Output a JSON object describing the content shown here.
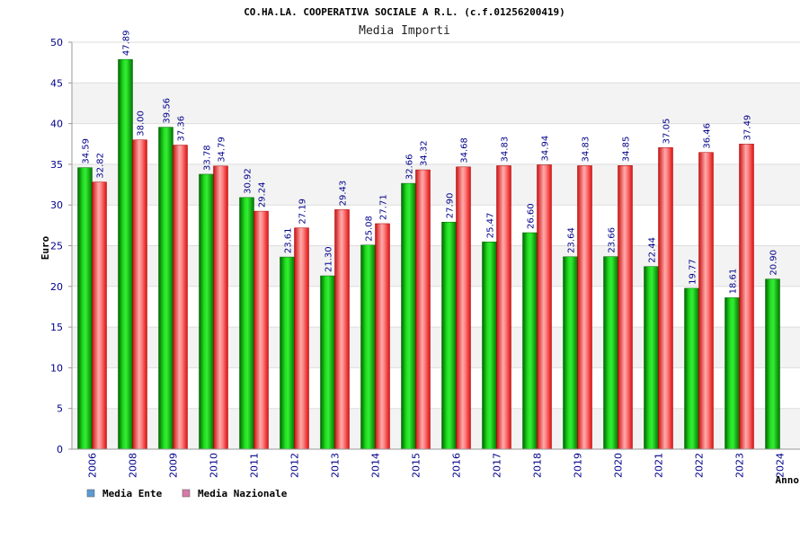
{
  "chart_data": {
    "type": "bar",
    "title": "CO.HA.LA. COOPERATIVA SOCIALE A R.L. (c.f.01256200419)",
    "subtitle": "Media Importi",
    "xlabel": "Anno",
    "ylabel": "Euro",
    "ylim": [
      0,
      50
    ],
    "yticks": [
      0,
      5,
      10,
      15,
      20,
      25,
      30,
      35,
      40,
      45,
      50
    ],
    "grid": true,
    "legend_position": "bottom-left",
    "categories": [
      "2006",
      "2008",
      "2009",
      "2010",
      "2011",
      "2012",
      "2013",
      "2014",
      "2015",
      "2016",
      "2017",
      "2018",
      "2019",
      "2020",
      "2021",
      "2022",
      "2023",
      "2024"
    ],
    "series": [
      {
        "name": "Media Ente",
        "color": "#00aa00",
        "legend_color": "#5b9bd5",
        "values": [
          34.59,
          47.89,
          39.56,
          33.78,
          30.92,
          23.61,
          21.3,
          25.08,
          32.66,
          27.9,
          25.47,
          26.6,
          23.64,
          23.66,
          22.44,
          19.77,
          18.61,
          20.9
        ],
        "labels": [
          "34.59",
          "47.89",
          "39.56",
          "33.78",
          "30.92",
          "23.61",
          "21.30",
          "25.08",
          "32.66",
          "27.90",
          "25.47",
          "26.60",
          "23.64",
          "23.66",
          "22.44",
          "19.77",
          "18.61",
          "20.90"
        ]
      },
      {
        "name": "Media Nazionale",
        "color": "#ee2222",
        "legend_color": "#d77ba8",
        "values": [
          32.82,
          38.0,
          37.36,
          34.79,
          29.24,
          27.19,
          29.43,
          27.71,
          34.32,
          34.68,
          34.83,
          34.94,
          34.83,
          34.85,
          37.05,
          36.46,
          37.49,
          null
        ],
        "labels": [
          "32.82",
          "38.00",
          "37.36",
          "34.79",
          "29.24",
          "27.19",
          "29.43",
          "27.71",
          "34.32",
          "34.68",
          "34.83",
          "34.94",
          "34.83",
          "34.85",
          "37.05",
          "36.46",
          "37.49",
          ""
        ]
      }
    ]
  }
}
